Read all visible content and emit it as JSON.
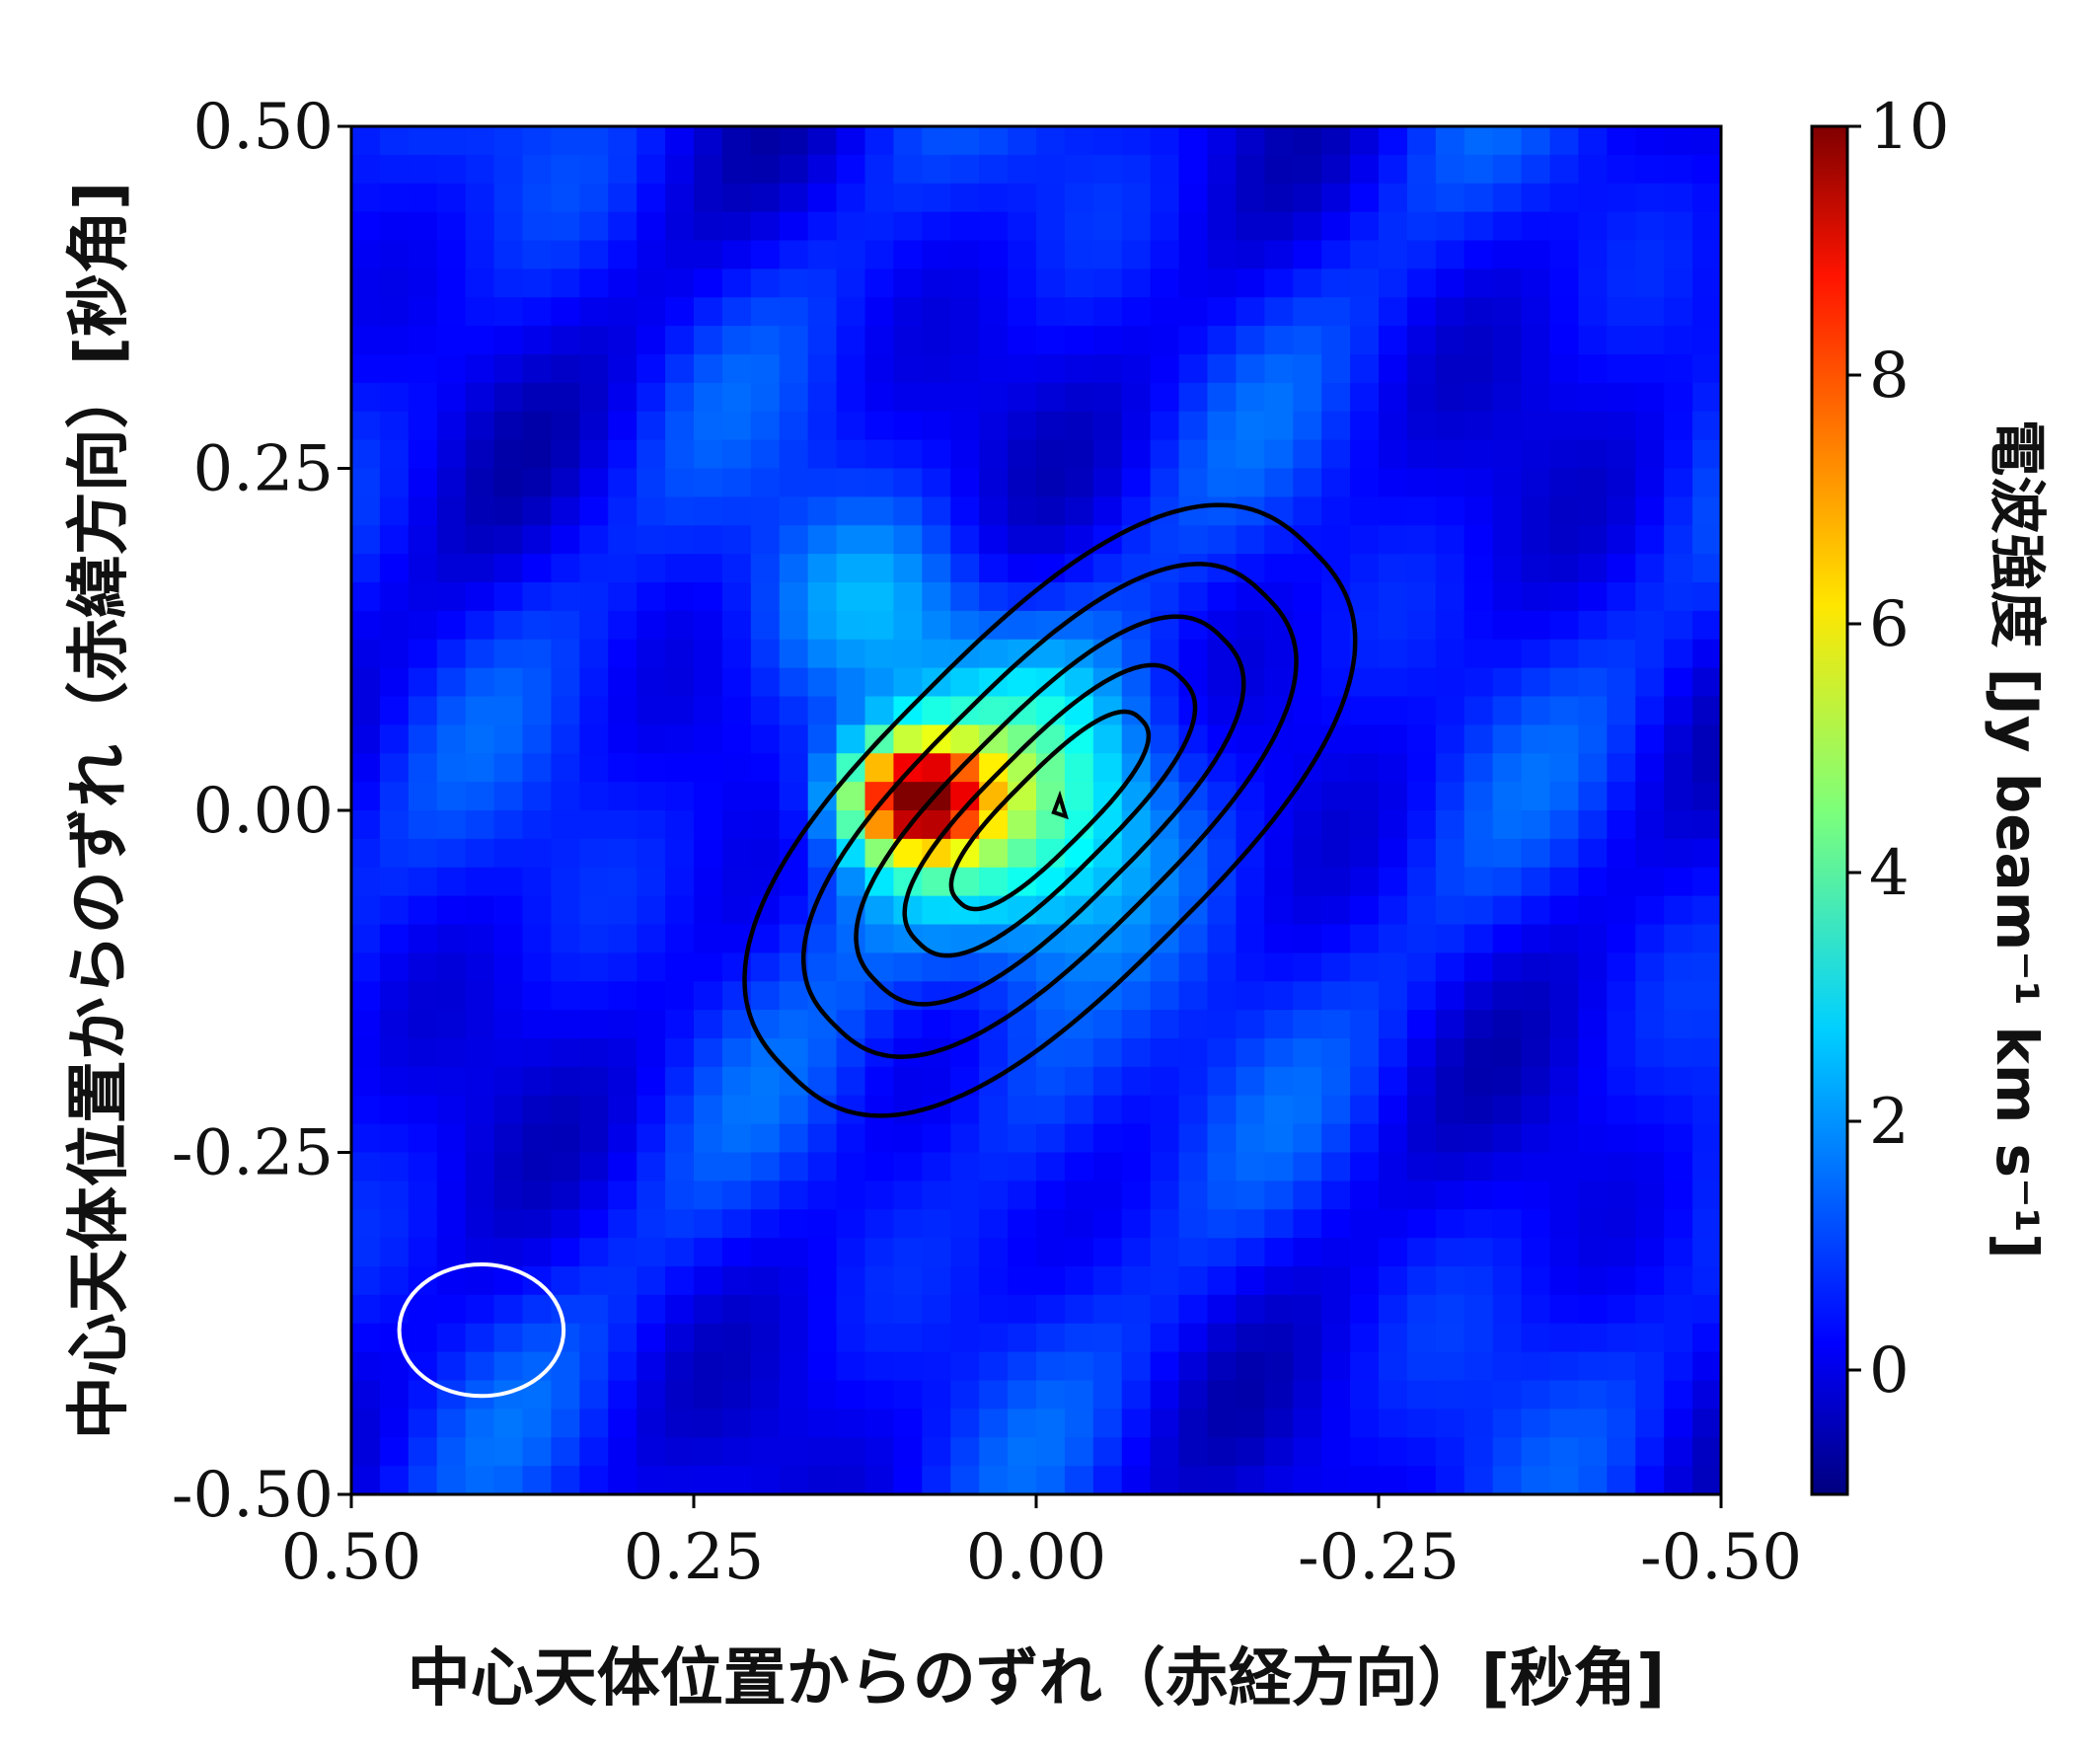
{
  "chart_data": {
    "type": "heatmap",
    "xlabel": "中心天体位置からのずれ（赤経方向）[秒角]",
    "ylabel": "中心天体位置からのずれ（赤緯方向）[秒角]",
    "colorbar_label": "電波強度 [Jy beam⁻¹ km s⁻¹]",
    "xlim": [
      0.5,
      -0.5
    ],
    "ylim": [
      -0.5,
      0.5
    ],
    "x_ticks": [
      "0.50",
      "0.25",
      "0.00",
      "-0.25",
      "-0.50"
    ],
    "y_ticks": [
      "-0.50",
      "-0.25",
      "0.00",
      "0.25",
      "0.50"
    ],
    "x_tick_values": [
      0.5,
      0.25,
      0.0,
      -0.25,
      -0.5
    ],
    "y_tick_values": [
      -0.5,
      -0.25,
      0.0,
      0.25,
      0.5
    ],
    "colorbar_ticks": [
      "0",
      "2",
      "4",
      "6",
      "8",
      "10"
    ],
    "colorbar_tick_values": [
      0,
      2,
      4,
      6,
      8,
      10
    ],
    "colorbar_range": [
      -1,
      10
    ],
    "colormap": "jet",
    "grid": false,
    "emission_peak": {
      "x": 0.09,
      "y": 0.01,
      "value": 10
    },
    "contours": {
      "color": "#000000",
      "center": {
        "x": -0.01,
        "y": 0.0
      },
      "angle_deg": 45,
      "levels": 5,
      "half_lengths_major": [
        0.27,
        0.222,
        0.178,
        0.136,
        0.094
      ],
      "half_lengths_minor": [
        0.125,
        0.094,
        0.068,
        0.046,
        0.028
      ]
    },
    "beam": {
      "x": 0.405,
      "y": -0.38,
      "major": 0.12,
      "minor": 0.096,
      "angle_deg": 0,
      "color": "#ffffff"
    }
  }
}
